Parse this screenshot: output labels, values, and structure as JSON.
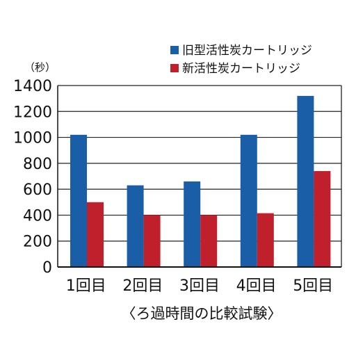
{
  "chart_data": {
    "type": "bar",
    "title": "",
    "unit_label": "（秒）",
    "xlabel": "〈ろ過時間の比較試験〉",
    "ylabel": "",
    "ylim": [
      0,
      1400
    ],
    "yticks": [
      0,
      200,
      400,
      600,
      800,
      1000,
      1200,
      1400
    ],
    "categories": [
      "1回目",
      "2回目",
      "3回目",
      "4回目",
      "5回目"
    ],
    "series": [
      {
        "name": "旧型活性炭カートリッジ",
        "color": "#1a5ea8",
        "values": [
          1020,
          630,
          660,
          1020,
          1320
        ]
      },
      {
        "name": "新活性炭カートリッジ",
        "color": "#c0202c",
        "values": [
          500,
          400,
          400,
          415,
          740
        ]
      }
    ],
    "grid": true,
    "legend_position": "top-right"
  }
}
